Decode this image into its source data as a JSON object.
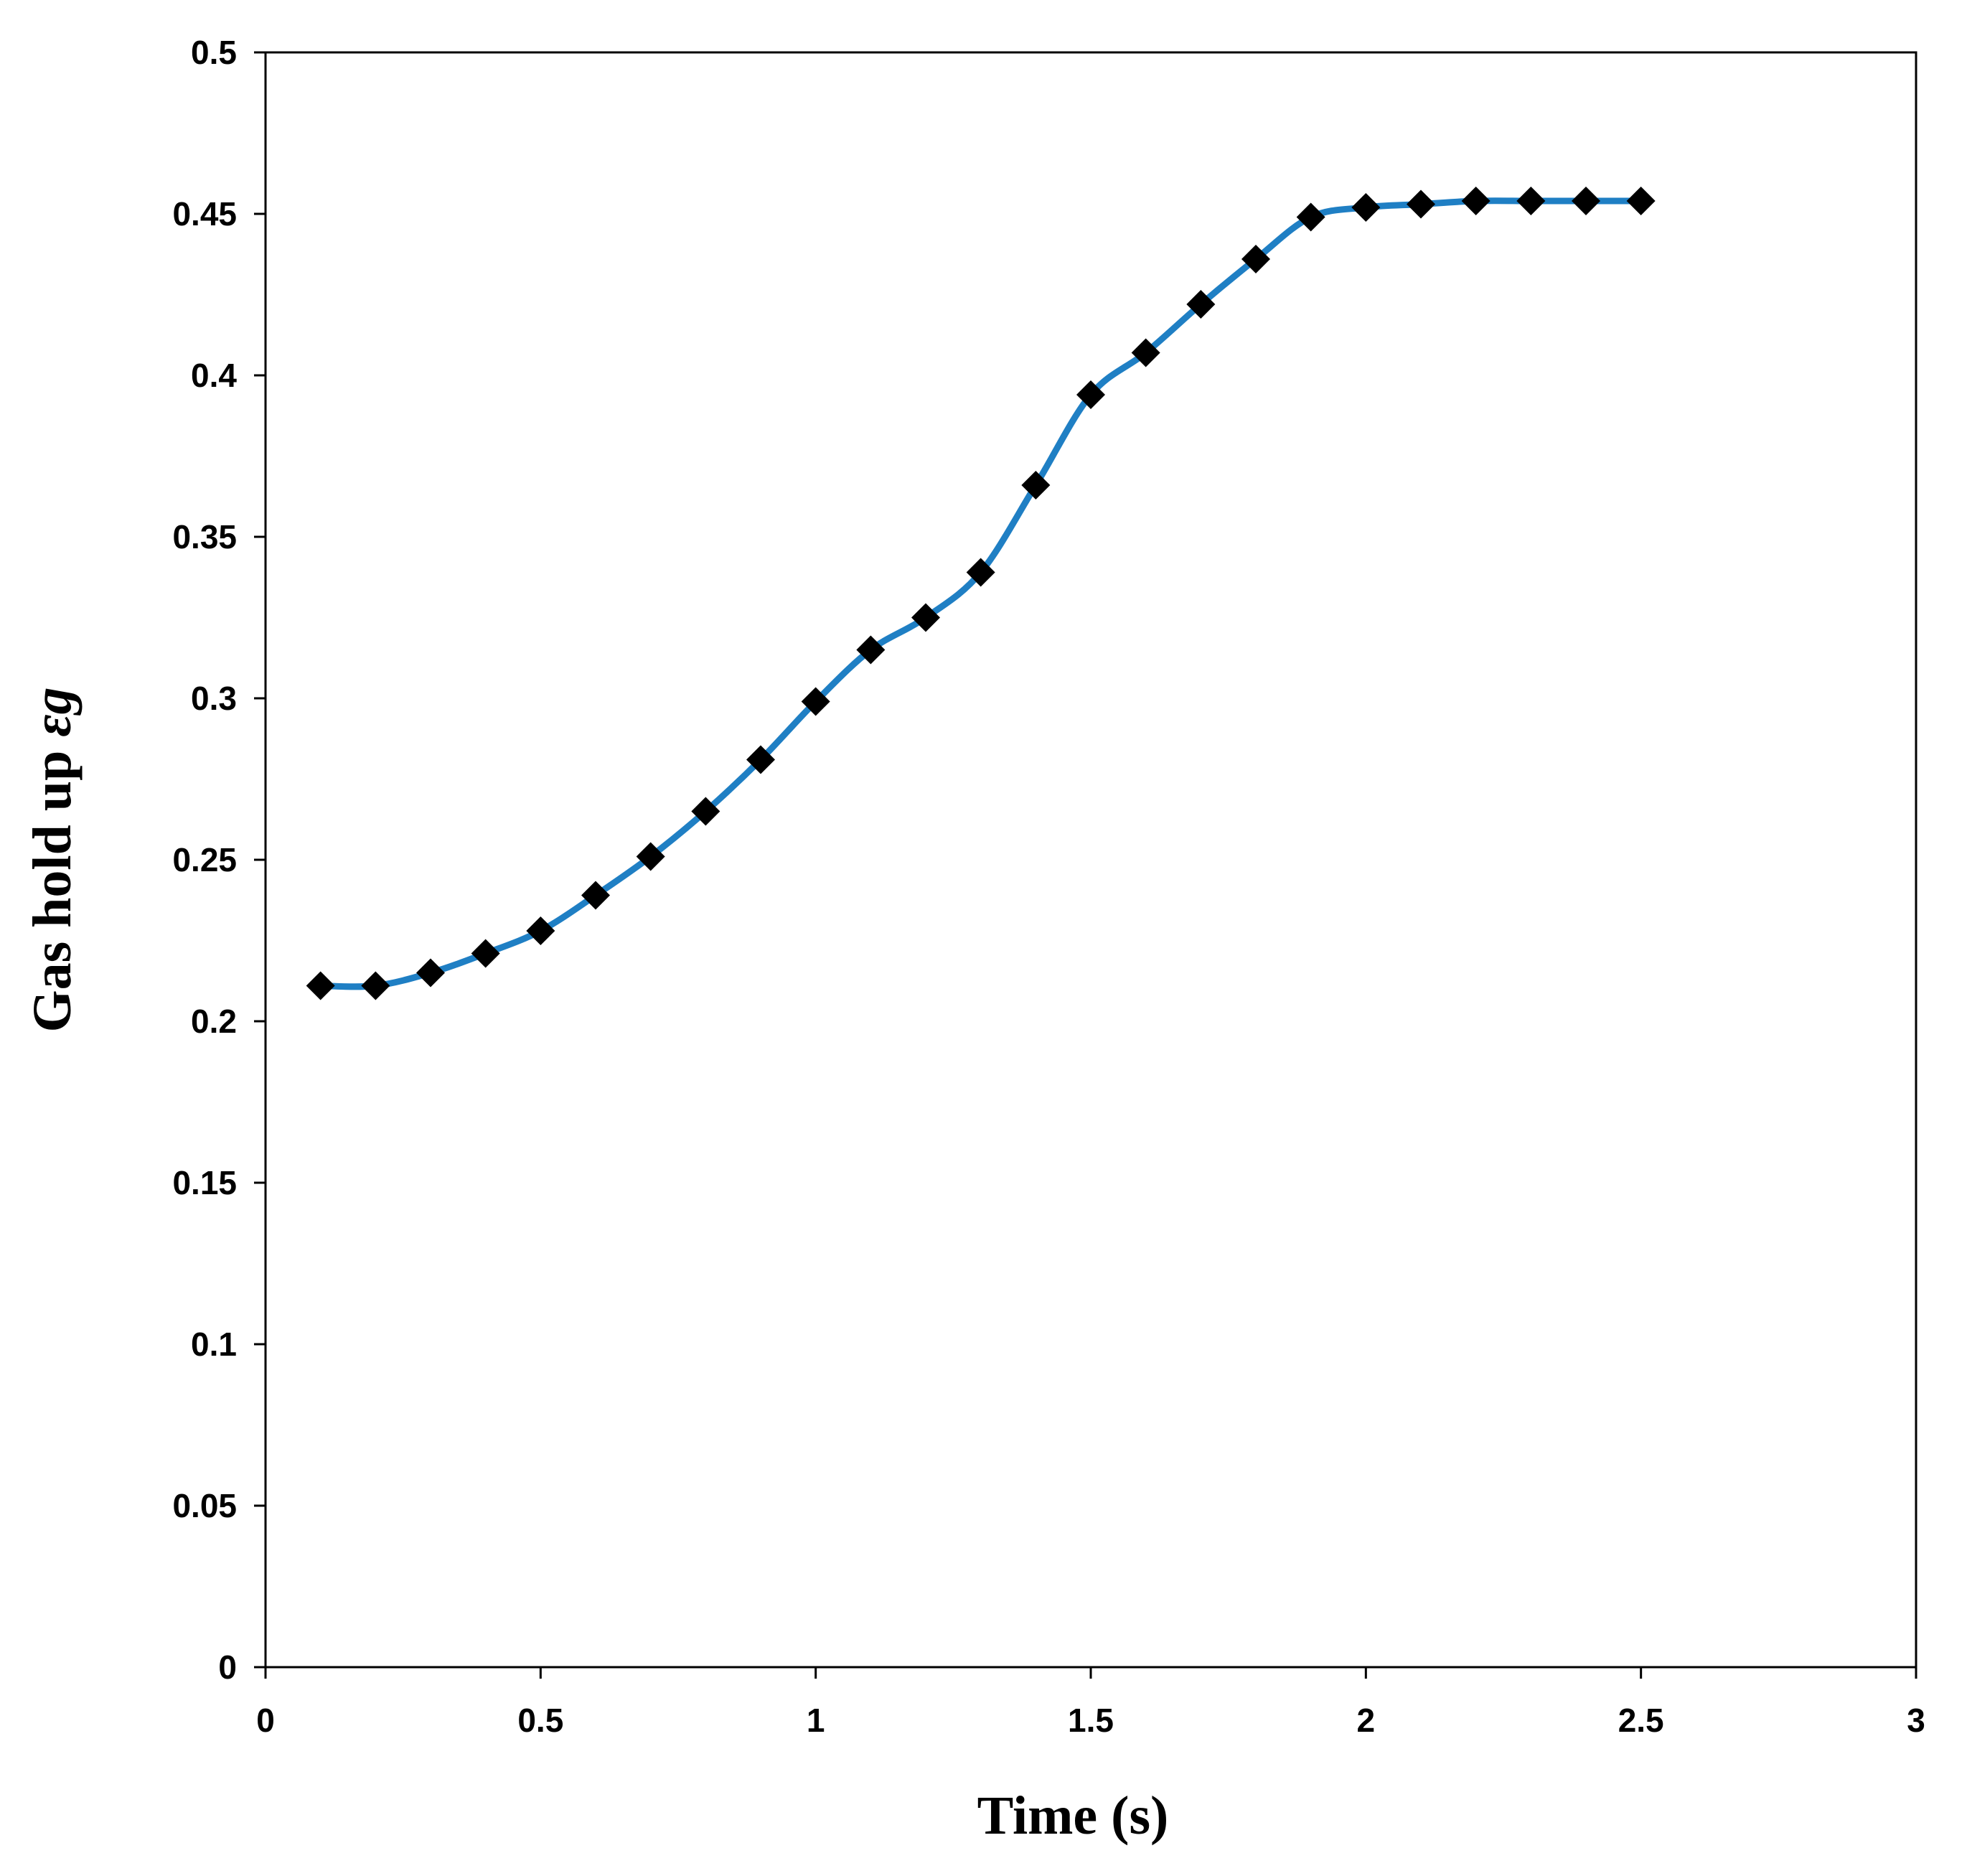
{
  "chart_data": {
    "type": "line",
    "title": "",
    "xlabel": "Time (s)",
    "ylabel": "Gas hold up εg",
    "ylabel_parts": {
      "text": "Gas hold up ",
      "symbol": "εg"
    },
    "xlim": [
      0,
      3
    ],
    "ylim": [
      0,
      0.5
    ],
    "xticks": [
      "0",
      "0.5",
      "1",
      "1.5",
      "2",
      "2.5",
      "3"
    ],
    "yticks": [
      "0",
      "0.05",
      "0.1",
      "0.15",
      "0.2",
      "0.25",
      "0.3",
      "0.35",
      "0.4",
      "0.45",
      "0.5"
    ],
    "grid": false,
    "legend": "none",
    "series": [
      {
        "name": "Gas hold up",
        "line_color": "#1f7fc4",
        "marker": "diamond",
        "marker_color": "#000000",
        "smooth": true,
        "x": [
          0.1,
          0.2,
          0.3,
          0.4,
          0.5,
          0.6,
          0.7,
          0.8,
          0.9,
          1.0,
          1.1,
          1.2,
          1.3,
          1.4,
          1.5,
          1.6,
          1.7,
          1.8,
          1.9,
          2.0,
          2.1,
          2.2,
          2.3,
          2.4,
          2.5
        ],
        "y": [
          0.211,
          0.211,
          0.215,
          0.221,
          0.228,
          0.239,
          0.251,
          0.265,
          0.281,
          0.299,
          0.315,
          0.325,
          0.339,
          0.366,
          0.394,
          0.407,
          0.422,
          0.436,
          0.449,
          0.452,
          0.453,
          0.454,
          0.454,
          0.454,
          0.454
        ]
      }
    ]
  }
}
